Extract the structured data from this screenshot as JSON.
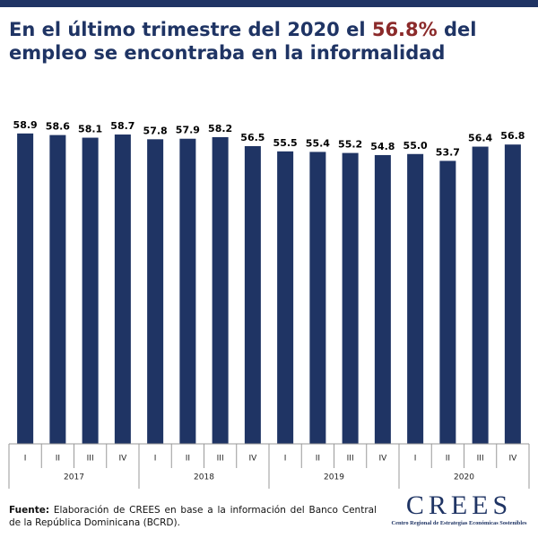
{
  "chart_data": {
    "type": "bar",
    "title_parts": [
      {
        "text": "En el último trimestre del 2020 el ",
        "color": "#1f3464"
      },
      {
        "text": "56.8%",
        "color": "#8b2a2a"
      },
      {
        "text": " del empleo se encontraba en la informalidad",
        "color": "#1f3464"
      }
    ],
    "categories": [
      "I",
      "II",
      "III",
      "IV",
      "I",
      "II",
      "III",
      "IV",
      "I",
      "II",
      "III",
      "IV",
      "I",
      "II",
      "III",
      "IV"
    ],
    "groups": [
      "2017",
      "2018",
      "2019",
      "2020"
    ],
    "values": [
      58.9,
      58.6,
      58.1,
      58.7,
      57.8,
      57.9,
      58.2,
      56.5,
      55.5,
      55.4,
      55.2,
      54.8,
      55.0,
      53.7,
      56.4,
      56.8
    ],
    "value_labels": [
      "58.9",
      "58.6",
      "58.1",
      "58.7",
      "57.8",
      "57.9",
      "58.2",
      "56.5",
      "55.5",
      "55.4",
      "55.2",
      "54.8",
      "55.0",
      "53.7",
      "56.4",
      "56.8"
    ],
    "color": "#1f3464",
    "ylim": [
      0,
      65
    ]
  },
  "footer": {
    "label": "Fuente:",
    "text": "Elaboración de CREES en base a la información del Banco Central de la República Dominicana (BCRD)."
  },
  "logo": {
    "name": "CREES",
    "subtitle": "Centro Regional de Estrategias Económicas Sostenibles"
  }
}
